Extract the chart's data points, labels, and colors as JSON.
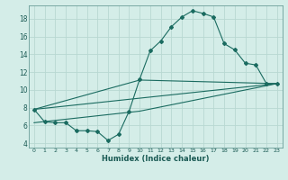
{
  "xlabel": "Humidex (Indice chaleur)",
  "bg_color": "#d4ede8",
  "grid_color": "#b8d8d2",
  "line_color": "#1a6b60",
  "spine_color": "#6a9e98",
  "xlim": [
    -0.5,
    23.5
  ],
  "ylim": [
    3.5,
    19.5
  ],
  "xticks": [
    0,
    1,
    2,
    3,
    4,
    5,
    6,
    7,
    8,
    9,
    10,
    11,
    12,
    13,
    14,
    15,
    16,
    17,
    18,
    19,
    20,
    21,
    22,
    23
  ],
  "yticks": [
    4,
    6,
    8,
    10,
    12,
    14,
    16,
    18
  ],
  "curve1_x": [
    0,
    1,
    2,
    3,
    4,
    5,
    6,
    7,
    8,
    9,
    10,
    11,
    12,
    13,
    14,
    15,
    16,
    17,
    18,
    19,
    20,
    21,
    22,
    23
  ],
  "curve1_y": [
    7.8,
    6.4,
    6.3,
    6.3,
    5.4,
    5.4,
    5.3,
    4.3,
    5.0,
    7.6,
    11.2,
    14.4,
    15.5,
    17.1,
    18.2,
    18.9,
    18.6,
    18.2,
    15.2,
    14.5,
    13.0,
    12.8,
    10.7,
    10.7
  ],
  "line1_x": [
    0,
    23
  ],
  "line1_y": [
    7.8,
    10.7
  ],
  "line2_x": [
    0,
    10,
    23
  ],
  "line2_y": [
    7.8,
    11.1,
    10.7
  ],
  "line3_x": [
    0,
    10,
    23
  ],
  "line3_y": [
    6.3,
    7.6,
    10.7
  ]
}
